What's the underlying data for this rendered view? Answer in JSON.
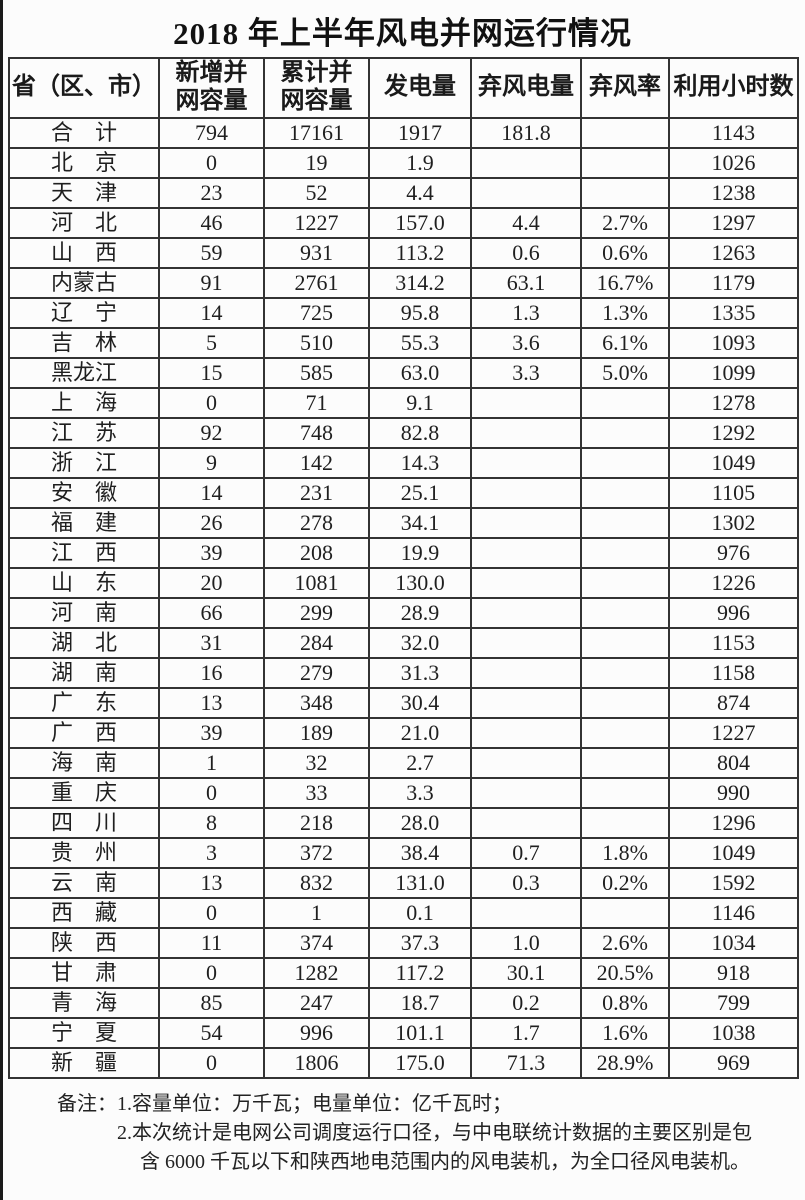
{
  "title": "2018 年上半年风电并网运行情况",
  "table": {
    "headers": [
      "省（区、市）",
      "新增并\n网容量",
      "累计并\n网容量",
      "发电量",
      "弃风电量",
      "弃风率",
      "利用小时数"
    ],
    "rows": [
      {
        "province": "合　计",
        "values": [
          "794",
          "17161",
          "1917",
          "181.8",
          "",
          "1143"
        ]
      },
      {
        "province": "北　京",
        "values": [
          "0",
          "19",
          "1.9",
          "",
          "",
          "1026"
        ]
      },
      {
        "province": "天　津",
        "values": [
          "23",
          "52",
          "4.4",
          "",
          "",
          "1238"
        ]
      },
      {
        "province": "河　北",
        "values": [
          "46",
          "1227",
          "157.0",
          "4.4",
          "2.7%",
          "1297"
        ]
      },
      {
        "province": "山　西",
        "values": [
          "59",
          "931",
          "113.2",
          "0.6",
          "0.6%",
          "1263"
        ]
      },
      {
        "province": "内蒙古",
        "values": [
          "91",
          "2761",
          "314.2",
          "63.1",
          "16.7%",
          "1179"
        ]
      },
      {
        "province": "辽　宁",
        "values": [
          "14",
          "725",
          "95.8",
          "1.3",
          "1.3%",
          "1335"
        ]
      },
      {
        "province": "吉　林",
        "values": [
          "5",
          "510",
          "55.3",
          "3.6",
          "6.1%",
          "1093"
        ]
      },
      {
        "province": "黑龙江",
        "values": [
          "15",
          "585",
          "63.0",
          "3.3",
          "5.0%",
          "1099"
        ]
      },
      {
        "province": "上　海",
        "values": [
          "0",
          "71",
          "9.1",
          "",
          "",
          "1278"
        ]
      },
      {
        "province": "江　苏",
        "values": [
          "92",
          "748",
          "82.8",
          "",
          "",
          "1292"
        ]
      },
      {
        "province": "浙　江",
        "values": [
          "9",
          "142",
          "14.3",
          "",
          "",
          "1049"
        ]
      },
      {
        "province": "安　徽",
        "values": [
          "14",
          "231",
          "25.1",
          "",
          "",
          "1105"
        ]
      },
      {
        "province": "福　建",
        "values": [
          "26",
          "278",
          "34.1",
          "",
          "",
          "1302"
        ]
      },
      {
        "province": "江　西",
        "values": [
          "39",
          "208",
          "19.9",
          "",
          "",
          "976"
        ]
      },
      {
        "province": "山　东",
        "values": [
          "20",
          "1081",
          "130.0",
          "",
          "",
          "1226"
        ]
      },
      {
        "province": "河　南",
        "values": [
          "66",
          "299",
          "28.9",
          "",
          "",
          "996"
        ]
      },
      {
        "province": "湖　北",
        "values": [
          "31",
          "284",
          "32.0",
          "",
          "",
          "1153"
        ]
      },
      {
        "province": "湖　南",
        "values": [
          "16",
          "279",
          "31.3",
          "",
          "",
          "1158"
        ]
      },
      {
        "province": "广　东",
        "values": [
          "13",
          "348",
          "30.4",
          "",
          "",
          "874"
        ]
      },
      {
        "province": "广　西",
        "values": [
          "39",
          "189",
          "21.0",
          "",
          "",
          "1227"
        ]
      },
      {
        "province": "海　南",
        "values": [
          "1",
          "32",
          "2.7",
          "",
          "",
          "804"
        ]
      },
      {
        "province": "重　庆",
        "values": [
          "0",
          "33",
          "3.3",
          "",
          "",
          "990"
        ]
      },
      {
        "province": "四　川",
        "values": [
          "8",
          "218",
          "28.0",
          "",
          "",
          "1296"
        ]
      },
      {
        "province": "贵　州",
        "values": [
          "3",
          "372",
          "38.4",
          "0.7",
          "1.8%",
          "1049"
        ]
      },
      {
        "province": "云　南",
        "values": [
          "13",
          "832",
          "131.0",
          "0.3",
          "0.2%",
          "1592"
        ]
      },
      {
        "province": "西　藏",
        "values": [
          "0",
          "1",
          "0.1",
          "",
          "",
          "1146"
        ]
      },
      {
        "province": "陕　西",
        "values": [
          "11",
          "374",
          "37.3",
          "1.0",
          "2.6%",
          "1034"
        ]
      },
      {
        "province": "甘　肃",
        "values": [
          "0",
          "1282",
          "117.2",
          "30.1",
          "20.5%",
          "918"
        ]
      },
      {
        "province": "青　海",
        "values": [
          "85",
          "247",
          "18.7",
          "0.2",
          "0.8%",
          "799"
        ]
      },
      {
        "province": "宁　夏",
        "values": [
          "54",
          "996",
          "101.1",
          "1.7",
          "1.6%",
          "1038"
        ]
      },
      {
        "province": "新　疆",
        "values": [
          "0",
          "1806",
          "175.0",
          "71.3",
          "28.9%",
          "969"
        ]
      }
    ]
  },
  "footnotes": {
    "label": "备注：",
    "items": [
      "1.容量单位：万千瓦；电量单位：亿千瓦时；",
      "2.本次统计是电网公司调度运行口径，与中电联统计数据的主要区别是包含 6000 千瓦以下和陕西地电范围内的风电装机，为全口径风电装机。"
    ]
  }
}
